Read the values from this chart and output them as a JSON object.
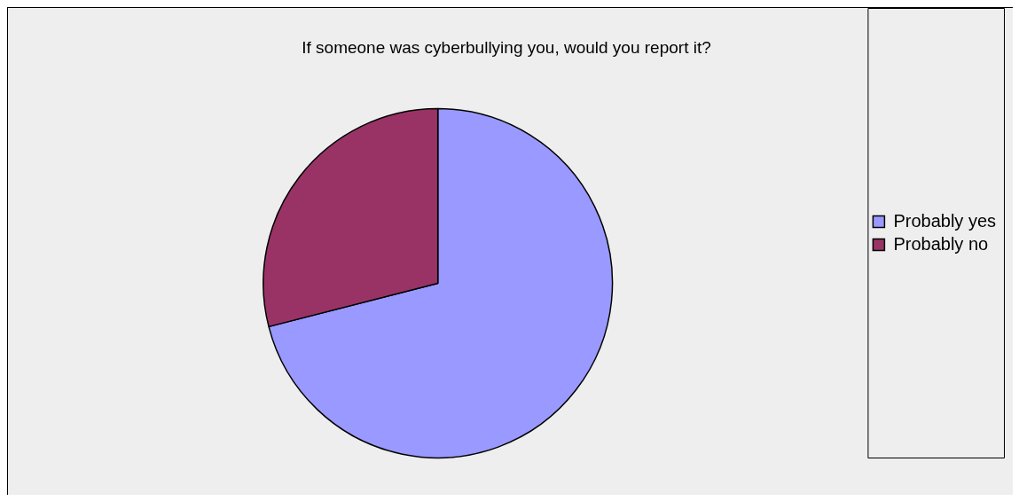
{
  "chart_data": {
    "type": "pie",
    "title": "If someone was cyberbullying you, would you report it?",
    "categories": [
      "Probably yes",
      "Probably no"
    ],
    "values": [
      71,
      29
    ],
    "colors": [
      "#9999ff",
      "#993366"
    ],
    "legend": "right"
  }
}
